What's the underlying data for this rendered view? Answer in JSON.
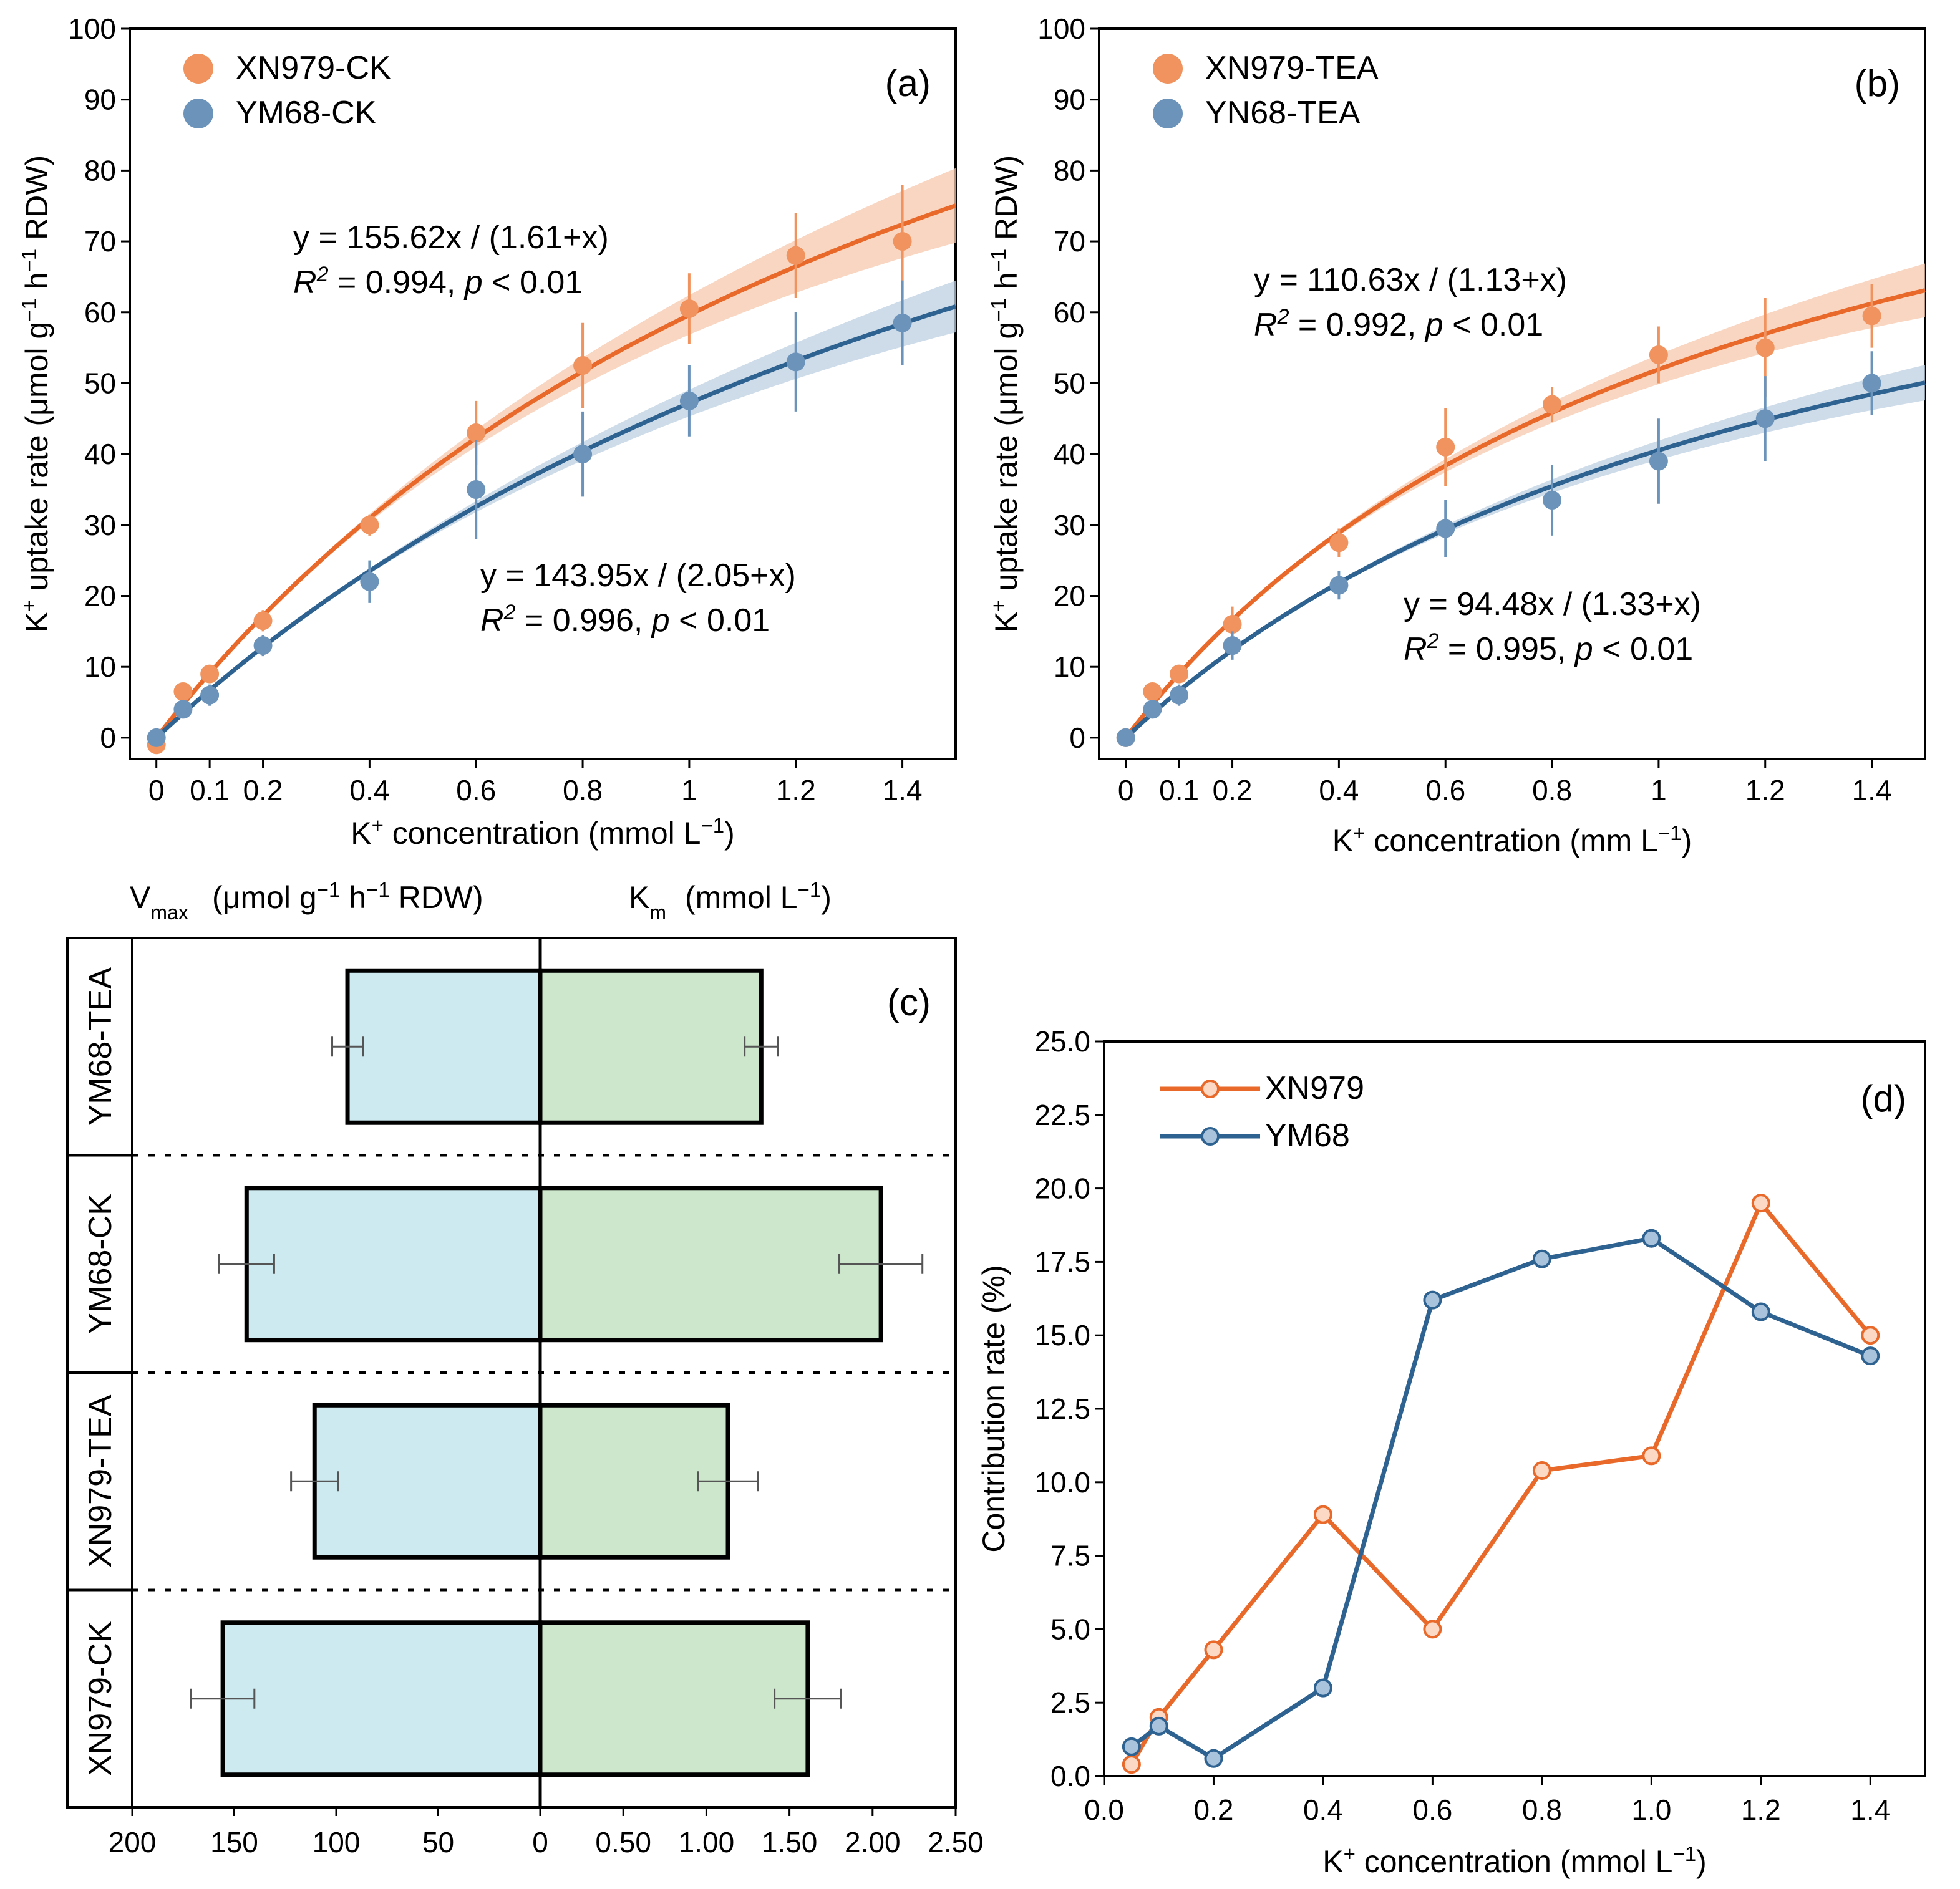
{
  "colors": {
    "orange": "#e8692a",
    "orange_pt": "#f0935e",
    "orange_band": "#f7c8ae",
    "blue": "#2e6291",
    "blue_pt": "#6c94bb",
    "blue_band": "#bdd0e2",
    "vmax_fill": "#cceaf0",
    "km_fill": "#cce7cc"
  },
  "chart_data": [
    {
      "id": "a",
      "type": "scatter",
      "panel_label": "(a)",
      "xlabel": "K⁺ concentration (mmol L⁻¹)",
      "ylabel": "K⁺ uptake rate (μmol g⁻¹ h⁻¹ RDW)",
      "xlim": [
        -0.05,
        1.5
      ],
      "ylim": [
        -3,
        100
      ],
      "x_ticks": [
        0,
        0.1,
        0.2,
        0.4,
        0.6,
        0.8,
        1,
        1.2,
        1.4
      ],
      "x_tick_labels": [
        "0",
        "0.1",
        "0.2",
        "0.4",
        "0.6",
        "0.8",
        "1",
        "1.2",
        "1.4"
      ],
      "y_ticks": [
        0,
        10,
        20,
        30,
        40,
        50,
        60,
        70,
        80,
        90,
        100
      ],
      "legend_position": "top-left",
      "series": [
        {
          "name": "XN979-CK",
          "color_key": "orange",
          "x": [
            0,
            0.05,
            0.1,
            0.2,
            0.4,
            0.6,
            0.8,
            1.0,
            1.2,
            1.4
          ],
          "y": [
            -1,
            6.5,
            9,
            16.5,
            30,
            43,
            52.5,
            60.5,
            68,
            70
          ],
          "err": [
            0.5,
            1,
            1.2,
            1.5,
            1.5,
            4.5,
            6,
            5,
            6,
            8
          ],
          "fit": {
            "vmax": 155.62,
            "km": 1.61,
            "band": 0.07
          },
          "equation": "y = 155.62x / (1.61+x)",
          "r2": "0.994",
          "p": "0.01"
        },
        {
          "name": "YM68-CK",
          "color_key": "blue",
          "x": [
            0,
            0.05,
            0.1,
            0.2,
            0.4,
            0.6,
            0.8,
            1.0,
            1.2,
            1.4
          ],
          "y": [
            0,
            4,
            6,
            13,
            22,
            35,
            40,
            47.5,
            53,
            58.5
          ],
          "err": [
            0.5,
            1,
            1.5,
            1.5,
            3,
            7,
            6,
            5,
            7,
            6
          ],
          "fit": {
            "vmax": 143.95,
            "km": 2.05,
            "band": 0.06
          },
          "equation": "y = 143.95x / (2.05+x)",
          "r2": "0.996",
          "p": "0.01"
        }
      ]
    },
    {
      "id": "b",
      "type": "scatter",
      "panel_label": "(b)",
      "xlabel": "K⁺ concentration (mm L⁻¹)",
      "ylabel": "K⁺ uptake rate (μmol g⁻¹ h⁻¹ RDW)",
      "xlim": [
        -0.05,
        1.5
      ],
      "ylim": [
        -3,
        100
      ],
      "x_ticks": [
        0,
        0.1,
        0.2,
        0.4,
        0.6,
        0.8,
        1,
        1.2,
        1.4
      ],
      "x_tick_labels": [
        "0",
        "0.1",
        "0.2",
        "0.4",
        "0.6",
        "0.8",
        "1",
        "1.2",
        "1.4"
      ],
      "y_ticks": [
        0,
        10,
        20,
        30,
        40,
        50,
        60,
        70,
        80,
        90,
        100
      ],
      "legend_position": "top-left",
      "series": [
        {
          "name": "XN979-TEA",
          "color_key": "orange",
          "x": [
            0,
            0.05,
            0.1,
            0.2,
            0.4,
            0.6,
            0.8,
            1.0,
            1.2,
            1.4
          ],
          "y": [
            0,
            6.5,
            9,
            16,
            27.5,
            41,
            47,
            54,
            55,
            59.5
          ],
          "err": [
            0.5,
            1,
            1.2,
            2.5,
            2,
            5.5,
            2.5,
            4,
            7,
            4.5
          ],
          "fit": {
            "vmax": 110.63,
            "km": 1.13,
            "band": 0.06
          },
          "equation": "y = 110.63x / (1.13+x)",
          "r2": "0.992",
          "p": "0.01"
        },
        {
          "name": "YN68-TEA",
          "color_key": "blue",
          "x": [
            0,
            0.05,
            0.1,
            0.2,
            0.4,
            0.6,
            0.8,
            1.0,
            1.2,
            1.4
          ],
          "y": [
            0,
            4,
            6,
            13,
            21.5,
            29.5,
            33.5,
            39,
            45,
            50
          ],
          "err": [
            0.5,
            1,
            1.5,
            2,
            2,
            4,
            5,
            6,
            6,
            4.5
          ],
          "fit": {
            "vmax": 94.48,
            "km": 1.33,
            "band": 0.05
          },
          "equation": "y = 94.48x / (1.33+x)",
          "r2": "0.995",
          "p": "0.01"
        }
      ]
    },
    {
      "id": "c",
      "type": "bar",
      "orientation": "horizontal-diverging",
      "panel_label": "(c)",
      "left_title": "V",
      "left_title_sub": "max",
      "left_title_rest": " (μmol g⁻¹ h⁻¹ RDW)",
      "right_title": "K",
      "right_title_sub": "m",
      "right_title_rest": " (mmol L⁻¹)",
      "categories": [
        "YM68-TEA",
        "YM68-CK",
        "XN979-TEA",
        "XN979-CK"
      ],
      "vmax": [
        94.48,
        143.95,
        110.63,
        155.62
      ],
      "vmax_err": [
        7.5,
        13.5,
        11.5,
        15.5
      ],
      "km": [
        1.33,
        2.05,
        1.13,
        1.61
      ],
      "km_err": [
        0.1,
        0.25,
        0.18,
        0.2
      ],
      "left_axis_ticks": [
        "200",
        "150",
        "100",
        "50",
        "0"
      ],
      "left_axis_values": [
        200,
        150,
        100,
        50,
        0
      ],
      "right_axis_ticks": [
        "0.50",
        "1.00",
        "1.50",
        "2.00",
        "2.50"
      ],
      "right_axis_values": [
        0.5,
        1.0,
        1.5,
        2.0,
        2.5
      ]
    },
    {
      "id": "d",
      "type": "line",
      "panel_label": "(d)",
      "xlabel": "K⁺ concentration (mmol L⁻¹)",
      "ylabel": "Contribution rate (%)",
      "xlim": [
        0,
        1.5
      ],
      "ylim": [
        0,
        25
      ],
      "x_ticks": [
        0.0,
        0.2,
        0.4,
        0.6,
        0.8,
        1.0,
        1.2,
        1.4
      ],
      "x_tick_labels": [
        "0.0",
        "0.2",
        "0.4",
        "0.6",
        "0.8",
        "1.0",
        "1.2",
        "1.4"
      ],
      "y_ticks": [
        0,
        2.5,
        5,
        7.5,
        10,
        12.5,
        15,
        17.5,
        20,
        22.5,
        25
      ],
      "y_tick_labels": [
        "0.0",
        "2.5",
        "5.0",
        "7.5",
        "10.0",
        "12.5",
        "15.0",
        "17.5",
        "20.0",
        "22.5",
        "25.0"
      ],
      "legend_position": "top-left",
      "series": [
        {
          "name": "XN979",
          "color_key": "orange",
          "x": [
            0.05,
            0.1,
            0.2,
            0.4,
            0.6,
            0.8,
            1.0,
            1.2,
            1.4
          ],
          "y": [
            0.4,
            2.0,
            4.3,
            8.9,
            5.0,
            10.4,
            10.9,
            19.5,
            15.0
          ]
        },
        {
          "name": "YM68",
          "color_key": "blue",
          "x": [
            0.05,
            0.1,
            0.2,
            0.4,
            0.6,
            0.8,
            1.0,
            1.2,
            1.4
          ],
          "y": [
            1.0,
            1.7,
            0.6,
            3.0,
            16.2,
            17.6,
            18.3,
            15.8,
            14.3
          ]
        }
      ]
    }
  ]
}
